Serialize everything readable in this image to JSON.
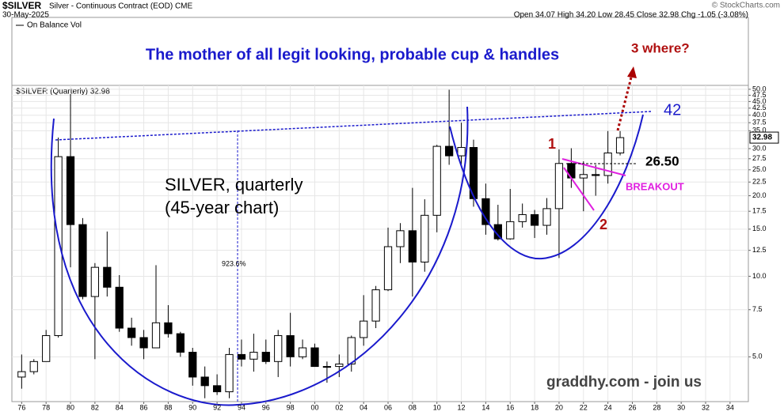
{
  "chart_data": {
    "type": "candlestick",
    "header": {
      "symbol": "$SILVER",
      "name": "Silver - Continuous Contract (EOD) CME",
      "date": "30-May-2025",
      "ohlc": "Open 34.07  High 34.20  Low 28.45  Close 32.98  Chg -1.05 (-3.08%)",
      "credit": "© StockCharts.com"
    },
    "indicator_label": "On Balance Vol",
    "price_label": "$SILVER (Quarterly) 32.98",
    "last_value": 32.98,
    "title": "The mother of all legit looking, probable cup & handles",
    "annotations": {
      "where": "3 where?",
      "target": "42",
      "level": "26.50",
      "breakout": "BREAKOUT",
      "one": "1",
      "two": "2",
      "subject": "SILVER, quarterly",
      "span": "(45-year chart)",
      "gain": "923.6%",
      "site": "graddhy.com - join us"
    },
    "log_scale": true,
    "x": [
      1976,
      1977,
      1978,
      1979,
      1980,
      1981,
      1982,
      1983,
      1984,
      1985,
      1986,
      1987,
      1988,
      1989,
      1990,
      1991,
      1992,
      1993,
      1994,
      1995,
      1996,
      1997,
      1998,
      1999,
      2000,
      2001,
      2002,
      2003,
      2004,
      2005,
      2006,
      2007,
      2008,
      2009,
      2010,
      2011,
      2012,
      2013,
      2014,
      2015,
      2016,
      2017,
      2018,
      2019,
      2020,
      2021,
      2022,
      2023,
      2024,
      2025
    ],
    "open": [
      4.2,
      4.4,
      4.8,
      6.0,
      28,
      15.6,
      8.4,
      10.8,
      9.1,
      6.4,
      5.9,
      5.4,
      6.7,
      6.1,
      5.2,
      4.2,
      3.9,
      3.7,
      5.1,
      4.9,
      5.2,
      4.8,
      6.0,
      5.0,
      5.4,
      4.6,
      4.6,
      4.7,
      5.9,
      6.8,
      8.9,
      12.9,
      14.8,
      11.3,
      16.9,
      30.6,
      28.2,
      30.3,
      19.5,
      15.6,
      13.8,
      16.0,
      17.0,
      15.5,
      17.9,
      26.4,
      23.3,
      24.0,
      23.8,
      28.9
    ],
    "high": [
      5.1,
      4.9,
      6.3,
      33,
      48,
      16.5,
      11.2,
      14.7,
      10.1,
      7.0,
      6.3,
      11,
      7.8,
      6.2,
      5.4,
      4.6,
      4.3,
      5.4,
      5.8,
      6.1,
      5.8,
      6.3,
      7.3,
      5.8,
      5.6,
      4.8,
      5.1,
      6.0,
      8.5,
      9.2,
      15.2,
      15.8,
      21.4,
      19.4,
      31,
      49.8,
      37.5,
      32.4,
      22.2,
      18.5,
      21.2,
      18.7,
      17.7,
      19.6,
      29.8,
      30.1,
      26.9,
      26.1,
      34.9,
      34.9
    ],
    "low": [
      3.8,
      4.3,
      4.8,
      5.9,
      10.8,
      8.2,
      4.9,
      8.4,
      6.2,
      5.5,
      4.9,
      5.4,
      5.9,
      5.0,
      3.9,
      3.5,
      3.6,
      3.5,
      4.6,
      4.4,
      4.7,
      4.2,
      4.6,
      4.9,
      4.6,
      4.0,
      4.2,
      4.4,
      5.5,
      6.4,
      8.8,
      11.2,
      8.4,
      10.4,
      14.6,
      26.1,
      26.1,
      18.2,
      14.3,
      13.6,
      13.7,
      15.2,
      13.9,
      14.3,
      11.7,
      21.4,
      17.5,
      20.0,
      22.2,
      28.3
    ],
    "close": [
      4.4,
      4.8,
      6.0,
      28,
      15.6,
      8.4,
      10.8,
      9.1,
      6.4,
      5.9,
      5.4,
      6.7,
      6.1,
      5.2,
      4.2,
      3.9,
      3.7,
      5.1,
      4.9,
      5.2,
      4.8,
      6.0,
      5.0,
      5.4,
      4.6,
      4.6,
      4.7,
      5.9,
      6.8,
      8.9,
      12.9,
      14.8,
      11.3,
      16.9,
      30.6,
      28.2,
      30.3,
      19.5,
      15.6,
      13.8,
      16.0,
      17.0,
      15.5,
      17.9,
      26.4,
      23.3,
      24.0,
      23.8,
      28.9,
      32.98
    ],
    "xlim": [
      1975.2,
      2035.5
    ],
    "ylim": [
      3.4,
      51.7
    ],
    "xticks": [
      {
        "value": 1976,
        "label": "76"
      },
      {
        "value": 1978,
        "label": "78"
      },
      {
        "value": 1980,
        "label": "80"
      },
      {
        "value": 1982,
        "label": "82"
      },
      {
        "value": 1984,
        "label": "84"
      },
      {
        "value": 1986,
        "label": "86"
      },
      {
        "value": 1988,
        "label": "88"
      },
      {
        "value": 1990,
        "label": "90"
      },
      {
        "value": 1992,
        "label": "92"
      },
      {
        "value": 1994,
        "label": "94"
      },
      {
        "value": 1996,
        "label": "96"
      },
      {
        "value": 1998,
        "label": "98"
      },
      {
        "value": 2000,
        "label": "00"
      },
      {
        "value": 2002,
        "label": "02"
      },
      {
        "value": 2004,
        "label": "04"
      },
      {
        "value": 2006,
        "label": "06"
      },
      {
        "value": 2008,
        "label": "08"
      },
      {
        "value": 2010,
        "label": "10"
      },
      {
        "value": 2012,
        "label": "12"
      },
      {
        "value": 2014,
        "label": "14"
      },
      {
        "value": 2016,
        "label": "16"
      },
      {
        "value": 2018,
        "label": "18"
      },
      {
        "value": 2020,
        "label": "20"
      },
      {
        "value": 2022,
        "label": "22"
      },
      {
        "value": 2024,
        "label": "24"
      },
      {
        "value": 2026,
        "label": "26"
      },
      {
        "value": 2028,
        "label": "28"
      },
      {
        "value": 2030,
        "label": "30"
      },
      {
        "value": 2032,
        "label": "32"
      },
      {
        "value": 2034,
        "label": "34"
      }
    ],
    "yticks": [
      {
        "value": 5,
        "label": "5.0"
      },
      7.5,
      {
        "value": 10,
        "label": "10.0"
      },
      12.5,
      {
        "value": 15,
        "label": "15.0"
      },
      17.5,
      {
        "value": 20,
        "label": "20.0"
      },
      22.5,
      {
        "value": 25,
        "label": "25.0"
      },
      27.5,
      {
        "value": 30,
        "label": "30.0"
      },
      {
        "value": 35,
        "label": "35.0"
      },
      37.5,
      {
        "value": 40,
        "label": "40.0"
      },
      42.5,
      {
        "value": 45,
        "label": "45.0"
      },
      47.5,
      {
        "value": 50,
        "label": "50.0"
      }
    ],
    "grid": true
  }
}
